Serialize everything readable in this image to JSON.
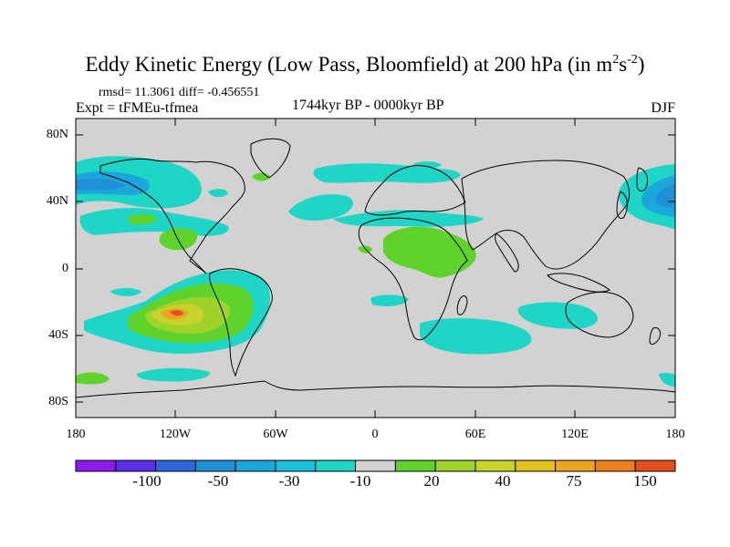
{
  "title": {
    "main": "Eddy Kinetic Energy (Low Pass, Bloomfield) at 200 hPa (in m",
    "sup1": "2",
    "mid": "s",
    "sup2": "-2",
    "close": ")"
  },
  "stats": "rmsd= 11.3061 diff= -0.456551",
  "expt": "Expt = tFMEu-tfmea",
  "period": "1744kyr BP - 0000kyr BP",
  "season": "DJF",
  "y_ticks": [
    "80N",
    "40N",
    "0",
    "40S",
    "80S"
  ],
  "x_ticks": [
    "180",
    "120W",
    "60W",
    "0",
    "60E",
    "120E",
    "180"
  ],
  "colorbar": {
    "colors": [
      "#8c1aeb",
      "#5a2fe6",
      "#2f66db",
      "#1f8fd6",
      "#1ba6dc",
      "#1bc0db",
      "#1fd6c6",
      "#d2d2d2",
      "#5fd22b",
      "#9fd32b",
      "#c8d32b",
      "#e3c21f",
      "#eba51f",
      "#eb7f1f",
      "#e34f1f"
    ],
    "labels": [
      "-100",
      "-50",
      "-30",
      "-10",
      "20",
      "40",
      "75",
      "150"
    ]
  },
  "colors": {
    "land_background": "#d2d2d2",
    "cyan": "#1fd6c6",
    "blue_cyan": "#1bc0db",
    "blue": "#1ba6dc",
    "deep_blue": "#1f8fd6",
    "green": "#5fd22b",
    "yellow_green": "#9fd32b",
    "yellow": "#c8d32b",
    "orange": "#eba51f",
    "red_orange": "#e34f1f"
  }
}
